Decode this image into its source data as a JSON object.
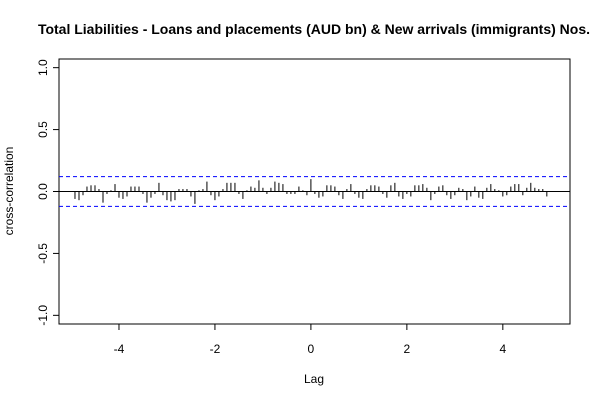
{
  "chart_data": {
    "type": "bar",
    "title": "Total Liabilities - Loans and placements (AUD bn) & New arrivals (immigrants) Nos.",
    "xlabel": "Lag",
    "ylabel": "cross-correlation",
    "xlim": [
      -5.25,
      5.4
    ],
    "ylim": [
      -1.07,
      1.07
    ],
    "x_ticks": [
      -4,
      -2,
      0,
      2,
      4
    ],
    "x_tick_labels": [
      "-4",
      "-2",
      "0",
      "2",
      "4"
    ],
    "y_ticks": [
      -1.0,
      -0.5,
      0.0,
      0.5,
      1.0
    ],
    "y_tick_labels": [
      "-1.0",
      "-0.5",
      "0.0",
      "0.5",
      "1.0"
    ],
    "ci_upper": 0.12,
    "ci_lower": -0.12,
    "ci_color": "#0000ff",
    "bar_color": "#000000",
    "x": [
      -4.917,
      -4.833,
      -4.75,
      -4.667,
      -4.583,
      -4.5,
      -4.417,
      -4.333,
      -4.25,
      -4.167,
      -4.083,
      -4.0,
      -3.917,
      -3.833,
      -3.75,
      -3.667,
      -3.583,
      -3.5,
      -3.417,
      -3.333,
      -3.25,
      -3.167,
      -3.083,
      -3.0,
      -2.917,
      -2.833,
      -2.75,
      -2.667,
      -2.583,
      -2.5,
      -2.417,
      -2.333,
      -2.25,
      -2.167,
      -2.083,
      -2.0,
      -1.917,
      -1.833,
      -1.75,
      -1.667,
      -1.583,
      -1.5,
      -1.417,
      -1.333,
      -1.25,
      -1.167,
      -1.083,
      -1.0,
      -0.917,
      -0.833,
      -0.75,
      -0.667,
      -0.583,
      -0.5,
      -0.417,
      -0.333,
      -0.25,
      -0.167,
      -0.083,
      0.0,
      0.083,
      0.167,
      0.25,
      0.333,
      0.417,
      0.5,
      0.583,
      0.667,
      0.75,
      0.833,
      0.917,
      1.0,
      1.083,
      1.167,
      1.25,
      1.333,
      1.417,
      1.5,
      1.583,
      1.667,
      1.75,
      1.833,
      1.917,
      2.0,
      2.083,
      2.167,
      2.25,
      2.333,
      2.417,
      2.5,
      2.583,
      2.667,
      2.75,
      2.833,
      2.917,
      3.0,
      3.083,
      3.167,
      3.25,
      3.333,
      3.417,
      3.5,
      3.583,
      3.667,
      3.75,
      3.833,
      3.917,
      4.0,
      4.083,
      4.167,
      4.25,
      4.333,
      4.417,
      4.5,
      4.583,
      4.667,
      4.75,
      4.833,
      4.917
    ],
    "values": [
      -0.06,
      -0.07,
      -0.03,
      0.04,
      0.05,
      0.05,
      0.02,
      -0.09,
      -0.02,
      0.01,
      0.06,
      -0.05,
      -0.06,
      -0.04,
      0.04,
      0.04,
      0.04,
      -0.02,
      -0.09,
      -0.05,
      -0.02,
      0.07,
      -0.03,
      -0.07,
      -0.08,
      -0.07,
      0.02,
      0.02,
      0.02,
      -0.04,
      -0.1,
      0.01,
      0.02,
      0.08,
      -0.03,
      -0.07,
      -0.04,
      0.02,
      0.07,
      0.07,
      0.07,
      -0.02,
      -0.06,
      0.01,
      0.04,
      0.03,
      0.09,
      0.03,
      -0.02,
      0.03,
      0.08,
      0.07,
      0.06,
      -0.02,
      -0.02,
      -0.02,
      0.04,
      0.01,
      -0.03,
      0.1,
      -0.02,
      -0.05,
      -0.04,
      0.05,
      0.05,
      0.04,
      -0.03,
      -0.06,
      0.02,
      0.06,
      -0.02,
      -0.05,
      -0.06,
      0.02,
      0.05,
      0.05,
      0.04,
      -0.02,
      -0.05,
      0.05,
      0.07,
      -0.04,
      -0.06,
      -0.02,
      -0.04,
      0.05,
      0.05,
      0.06,
      0.03,
      -0.07,
      -0.02,
      0.04,
      0.05,
      -0.03,
      -0.06,
      -0.03,
      0.03,
      0.02,
      -0.07,
      -0.04,
      0.04,
      -0.05,
      -0.06,
      0.03,
      0.06,
      0.02,
      0.01,
      -0.04,
      -0.03,
      0.04,
      0.06,
      0.06,
      -0.03,
      0.03,
      0.07,
      0.03,
      0.02,
      0.02,
      -0.04
    ]
  }
}
